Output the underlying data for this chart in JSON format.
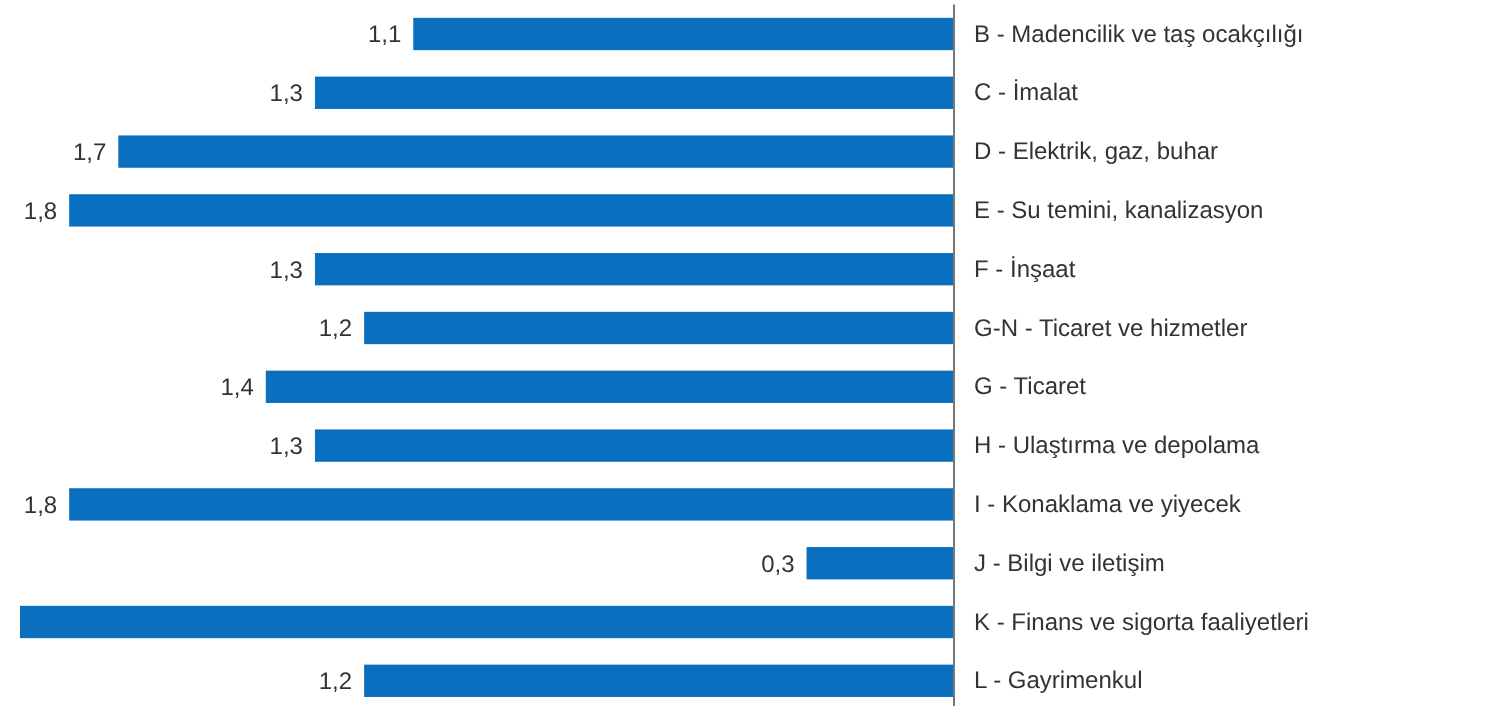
{
  "chart_data": {
    "type": "bar",
    "orientation": "horizontal",
    "categories": [
      "B - Madencilik ve taş ocakçılığı",
      "C - İmalat",
      "D - Elektrik, gaz, buhar",
      "E - Su temini, kanalizasyon",
      "F - İnşaat",
      "G-N - Ticaret ve hizmetler",
      "G - Ticaret",
      "H - Ulaştırma ve depolama",
      "I - Konaklama ve yiyecek",
      "J - Bilgi ve iletişim",
      "K - Finans ve sigorta faaliyetleri",
      "L - Gayrimenkul"
    ],
    "values": [
      1.1,
      1.3,
      1.7,
      1.8,
      1.3,
      1.2,
      1.4,
      1.3,
      1.8,
      0.3,
      1.9,
      1.2
    ],
    "value_labels": [
      "1,1",
      "1,3",
      "1,7",
      "1,8",
      "1,3",
      "1,2",
      "1,4",
      "1,3",
      "1,8",
      "0,3",
      null,
      "1,2"
    ],
    "color": "#0b6fc0",
    "tick_labels": false
  }
}
